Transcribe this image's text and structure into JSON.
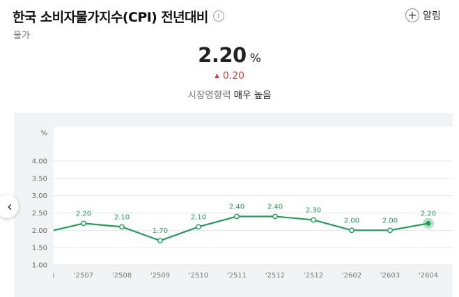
{
  "header": {
    "title": "한국 소비자물가지수(CPI) 전년대비",
    "subtitle": "물가",
    "info_icon": "info-icon",
    "alert_label": "알림"
  },
  "summary": {
    "value": "2.20",
    "unit": "%",
    "change": "0.20",
    "change_direction": "up",
    "influence_label": "시장영향력",
    "influence_value": "매우 높음"
  },
  "colors": {
    "line": "#1e9e57",
    "up": "#e03a3a",
    "panel_bg": "#f2f3f5"
  },
  "chart_data": {
    "type": "line",
    "ylabel": "%",
    "ylim": [
      1.0,
      4.0
    ],
    "y_ticks": [
      "4.00",
      "3.50",
      "3.00",
      "2.50",
      "2.00",
      "1.50",
      "1.00"
    ],
    "x_partial_label": "i",
    "categories": [
      "'2507",
      "'2508",
      "'2509",
      "'2510",
      "'2511",
      "'2512",
      "'2512",
      "'2602",
      "'2603",
      "'2604"
    ],
    "values": [
      2.2,
      2.1,
      1.7,
      2.1,
      2.4,
      2.4,
      2.3,
      2.0,
      2.0,
      2.2
    ],
    "data_labels": [
      "2.20",
      "2.10",
      "1.70",
      "2.10",
      "2.40",
      "2.40",
      "2.30",
      "2.00",
      "2.00",
      "2.20"
    ],
    "grid": true
  }
}
